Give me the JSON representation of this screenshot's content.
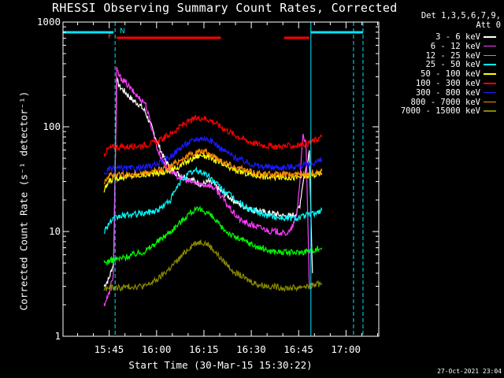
{
  "title": "RHESSI Observing Summary Count Rates, Corrected",
  "detector_info": [
    "Det 1,3,5,6,7,9,",
    "Att 0"
  ],
  "timestamp": "27-Oct-2021 23:04",
  "flags": {
    "F": "F",
    "N": "N"
  },
  "colors": {
    "background": "#000000",
    "axes": "#ffffff",
    "attenuator": "#00e5ff",
    "flare_bar": "#ff0000"
  },
  "chart_data": {
    "type": "line",
    "title": "RHESSI Observing Summary Count Rates, Corrected",
    "xlabel": "Start Time (30-Mar-15 15:30:22)",
    "ylabel": "Corrected Count Rate (s⁻¹ detector⁻¹)",
    "yscale": "log",
    "ylim": [
      1,
      1000
    ],
    "xlim_minutes": [
      0,
      100
    ],
    "x_ticks": [
      {
        "t": 14.63,
        "label": "15:45"
      },
      {
        "t": 29.63,
        "label": "16:00"
      },
      {
        "t": 44.63,
        "label": "16:15"
      },
      {
        "t": 59.63,
        "label": "16:30"
      },
      {
        "t": 74.63,
        "label": "16:45"
      },
      {
        "t": 89.63,
        "label": "17:00"
      }
    ],
    "y_ticks": [
      {
        "v": 1,
        "label": "1"
      },
      {
        "v": 10,
        "label": "10"
      },
      {
        "v": 100,
        "label": "100"
      },
      {
        "v": 1000,
        "label": "1000"
      }
    ],
    "attenuator_lines": [
      0,
      16.5,
      78.5,
      92,
      95
    ],
    "attenuator_segments": [
      [
        0,
        16.0
      ],
      [
        78.5,
        95
      ]
    ],
    "flare_segments": [
      [
        17,
        50
      ],
      [
        70,
        78
      ]
    ],
    "series": [
      {
        "name": "3 - 6 keV",
        "color": "#ffffff",
        "x": [
          13,
          14.5,
          16,
          17,
          18,
          20,
          22,
          24,
          26,
          28,
          30,
          32,
          34,
          36,
          38,
          40,
          42,
          44,
          46,
          48,
          50,
          52,
          54,
          56,
          58,
          60,
          62,
          64,
          66,
          68,
          70,
          72,
          74,
          75,
          76,
          77,
          78,
          79
        ],
        "y": [
          3,
          3.5,
          5,
          280,
          240,
          210,
          180,
          165,
          140,
          100,
          70,
          50,
          40,
          36,
          34,
          32,
          30,
          28,
          30,
          28,
          24,
          22,
          20,
          18,
          17,
          16,
          16,
          15,
          15,
          14.5,
          14,
          14,
          15,
          18,
          30,
          40,
          60,
          4
        ]
      },
      {
        "name": "6 - 12 keV",
        "color": "#ff3dff",
        "x": [
          13,
          14.5,
          16,
          17,
          18,
          20,
          22,
          24,
          26,
          28,
          30,
          32,
          34,
          36,
          38,
          40,
          42,
          44,
          46,
          48,
          50,
          52,
          54,
          56,
          58,
          60,
          62,
          64,
          66,
          68,
          70,
          72,
          74,
          75,
          76,
          77,
          78,
          79
        ],
        "y": [
          2,
          2.5,
          4,
          350,
          300,
          260,
          220,
          190,
          170,
          100,
          60,
          45,
          38,
          34,
          32,
          30,
          29,
          28,
          28,
          26,
          22,
          18,
          15,
          13,
          12,
          11.5,
          11,
          10.5,
          10,
          10,
          9.5,
          10,
          14,
          30,
          90,
          60,
          3,
          3
        ]
      },
      {
        "name": "12 - 25 keV",
        "color": "#00ff00",
        "x": [
          13,
          14.5,
          16,
          18,
          22,
          26,
          30,
          34,
          38,
          40,
          42,
          44,
          46,
          48,
          50,
          54,
          58,
          62,
          66,
          70,
          74,
          76,
          78,
          80,
          82
        ],
        "y": [
          5,
          5.2,
          5.4,
          5.5,
          6,
          6.5,
          8,
          10,
          13,
          15,
          16,
          16,
          15,
          13,
          11,
          9,
          8,
          7,
          6.5,
          6.3,
          6.3,
          6.4,
          6.6,
          6.8,
          7
        ]
      },
      {
        "name": "25 - 50 keV",
        "color": "#00ffff",
        "x": [
          13,
          14.5,
          16,
          18,
          22,
          26,
          30,
          34,
          36,
          38,
          40,
          42,
          44,
          46,
          48,
          50,
          54,
          58,
          62,
          66,
          70,
          74,
          76,
          78,
          80,
          82
        ],
        "y": [
          10,
          12,
          13,
          14,
          14.5,
          15,
          16,
          20,
          26,
          32,
          36,
          38,
          37,
          34,
          30,
          26,
          21,
          17,
          15,
          14,
          13.5,
          13.5,
          14,
          14.5,
          15,
          16
        ]
      },
      {
        "name": "50 - 100 keV",
        "color": "#ffff00",
        "x": [
          13,
          14.5,
          16,
          18,
          22,
          26,
          30,
          34,
          38,
          42,
          44,
          46,
          48,
          50,
          54,
          58,
          62,
          66,
          70,
          74,
          78,
          80,
          82
        ],
        "y": [
          24,
          30,
          32,
          33,
          34,
          35,
          36,
          38,
          44,
          52,
          54,
          52,
          48,
          44,
          39,
          36,
          34,
          33,
          33,
          33,
          34,
          35,
          36
        ]
      },
      {
        "name": "100 - 300 keV",
        "color": "#ff0000",
        "x": [
          13,
          14.5,
          16,
          18,
          22,
          26,
          30,
          34,
          38,
          42,
          44,
          46,
          48,
          50,
          54,
          58,
          62,
          66,
          70,
          74,
          78,
          80,
          82
        ],
        "y": [
          55,
          62,
          64,
          64,
          65,
          67,
          72,
          85,
          105,
          120,
          122,
          118,
          110,
          100,
          85,
          74,
          68,
          65,
          65,
          66,
          70,
          75,
          80
        ]
      },
      {
        "name": "300 - 800 keV",
        "color": "#1a1aff",
        "x": [
          13,
          14.5,
          16,
          18,
          22,
          26,
          30,
          34,
          38,
          42,
          44,
          46,
          48,
          50,
          54,
          58,
          62,
          66,
          70,
          74,
          78,
          80,
          82
        ],
        "y": [
          35,
          39,
          40,
          40,
          40,
          41,
          44,
          52,
          66,
          76,
          78,
          76,
          70,
          62,
          52,
          46,
          42,
          41,
          41,
          42,
          44,
          46,
          48
        ]
      },
      {
        "name": "800 - 7000 keV",
        "color": "#ff8c00",
        "x": [
          13,
          14.5,
          16,
          18,
          22,
          26,
          30,
          34,
          38,
          42,
          44,
          46,
          48,
          50,
          54,
          58,
          62,
          66,
          70,
          74,
          78,
          80,
          82
        ],
        "y": [
          30,
          34,
          35,
          35,
          35,
          36,
          38,
          42,
          50,
          57,
          58,
          56,
          52,
          48,
          42,
          38,
          36,
          35,
          35,
          35,
          36,
          37,
          38
        ]
      },
      {
        "name": "7000 - 15000 keV",
        "color": "#888800",
        "x": [
          13,
          14.5,
          16,
          18,
          22,
          26,
          30,
          34,
          38,
          40,
          42,
          44,
          46,
          48,
          50,
          54,
          58,
          62,
          66,
          70,
          74,
          76,
          78,
          80,
          82
        ],
        "y": [
          2.8,
          2.9,
          2.9,
          2.9,
          3,
          3,
          3.5,
          4.5,
          6,
          7,
          7.8,
          8,
          7.5,
          6.5,
          5.5,
          4.2,
          3.5,
          3.1,
          3,
          2.9,
          2.9,
          3,
          3,
          3.1,
          3.2
        ]
      }
    ]
  }
}
